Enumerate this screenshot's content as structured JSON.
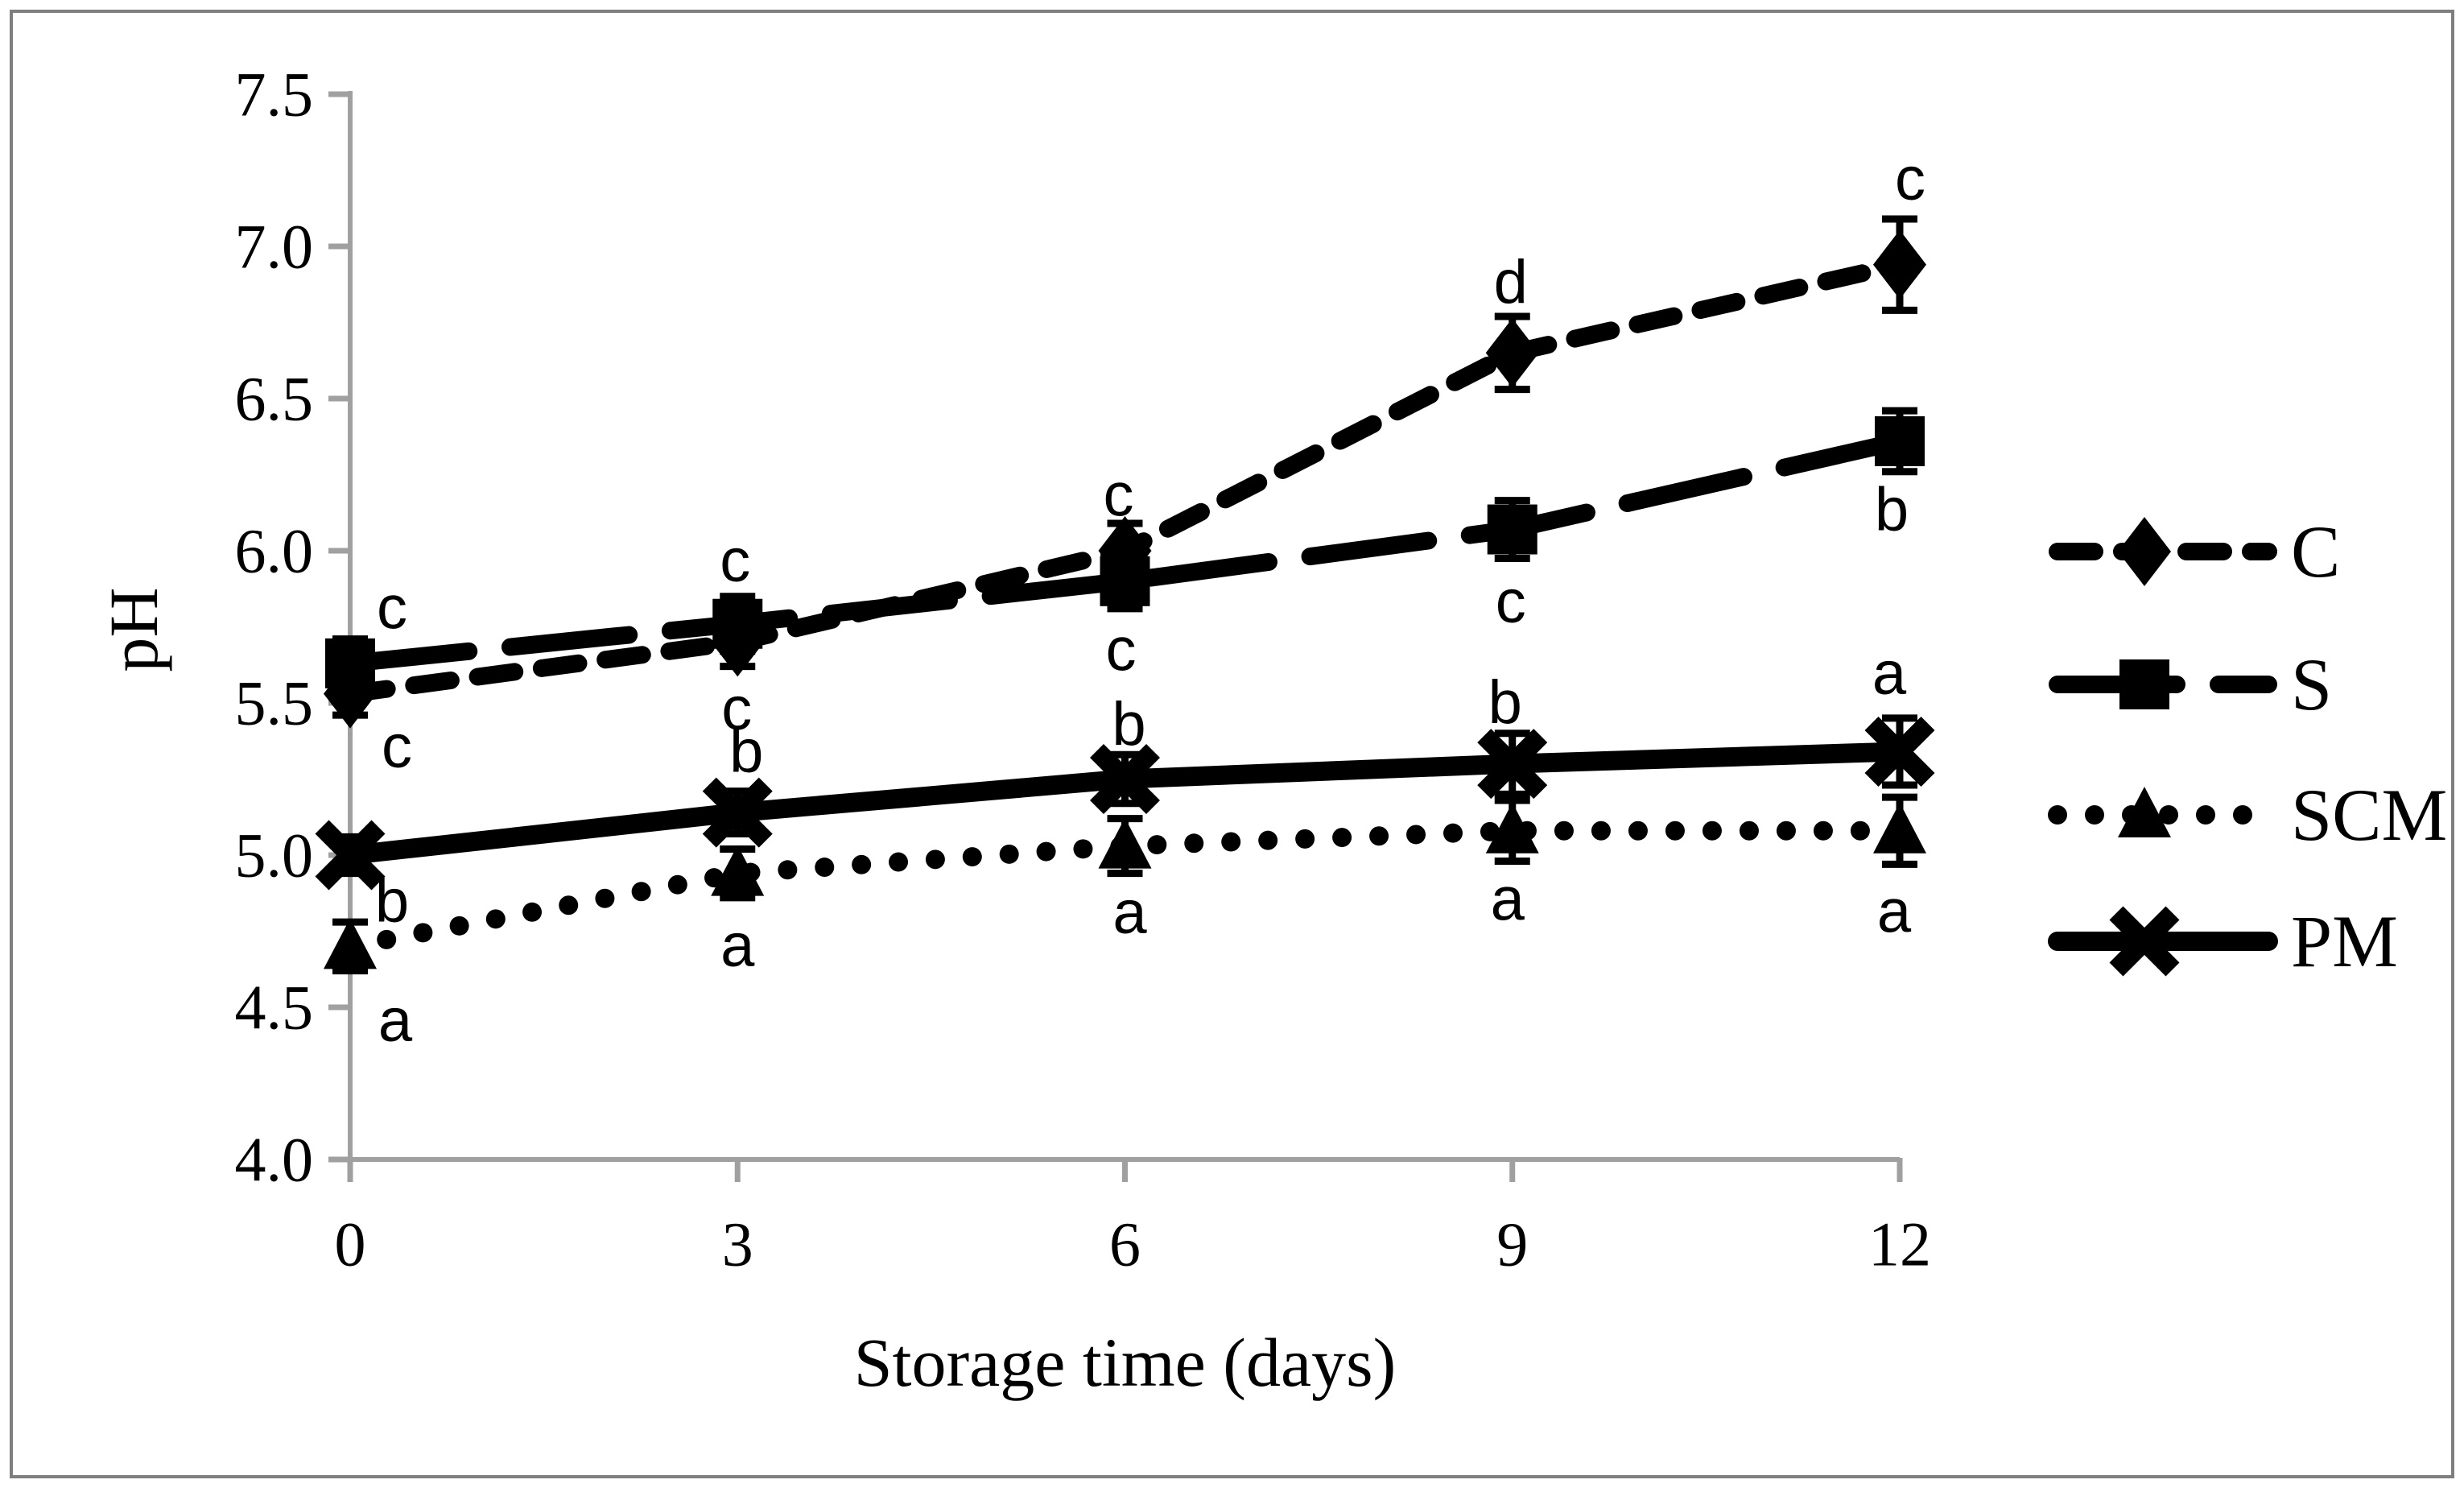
{
  "figure": {
    "background": "#ffffff",
    "border_color": "#7f7f7f",
    "axis_color": "#a0a0a0",
    "ink_color": "#000000"
  },
  "chart_data": {
    "type": "line",
    "title": "",
    "xlabel": "Storage time (days)",
    "ylabel": "pH",
    "x": [
      0,
      3,
      6,
      9,
      12
    ],
    "x_tick_labels": [
      "0",
      "3",
      "6",
      "9",
      "12"
    ],
    "y_tick_labels": [
      "4.0",
      "4.5",
      "5.0",
      "5.5",
      "6.0",
      "6.5",
      "7.0",
      "7.5"
    ],
    "ylim": [
      4.0,
      7.5
    ],
    "y_tick_step": 0.5,
    "grid": false,
    "legend_position": "right-middle",
    "legend_entries": [
      "C",
      "S",
      "SCM",
      "PM"
    ],
    "series": [
      {
        "name": "C",
        "marker": "diamond",
        "line_style": "dash",
        "values": [
          5.53,
          5.7,
          6.0,
          6.65,
          6.94
        ],
        "errors": [
          0.07,
          0.08,
          0.09,
          0.12,
          0.15
        ],
        "point_labels": [
          "c",
          "c",
          "c",
          "d",
          "c"
        ],
        "label_offsets": [
          [
            58,
            66
          ],
          [
            -1,
            83
          ],
          [
            -8,
            -69
          ],
          [
            -2,
            -88
          ],
          [
            13,
            -106
          ]
        ]
      },
      {
        "name": "S",
        "marker": "square",
        "line_style": "long-dash",
        "values": [
          5.63,
          5.76,
          5.9,
          6.07,
          6.36
        ],
        "errors": [
          0.08,
          0.09,
          0.09,
          0.095,
          0.1
        ],
        "point_labels": [
          "c",
          "c",
          "c",
          "c",
          "b"
        ],
        "label_offsets": [
          [
            52,
            -69
          ],
          [
            -3,
            -78
          ],
          [
            -5,
            85
          ],
          [
            -2,
            90
          ],
          [
            -10,
            85
          ]
        ]
      },
      {
        "name": "SCM",
        "marker": "triangle",
        "line_style": "dotted",
        "values": [
          4.7,
          4.94,
          5.03,
          5.08,
          5.08
        ],
        "errors": [
          0.08,
          0.08,
          0.09,
          0.1,
          0.11
        ],
        "point_labels": [
          "a",
          "a",
          "a",
          "a",
          "a"
        ],
        "label_offsets": [
          [
            56,
            92
          ],
          [
            0,
            90
          ],
          [
            6,
            83
          ],
          [
            -6,
            85
          ],
          [
            -7,
            100
          ]
        ]
      },
      {
        "name": "PM",
        "marker": "x",
        "line_style": "solid",
        "values": [
          5.0,
          5.14,
          5.25,
          5.3,
          5.34
        ],
        "errors": [
          0.06,
          0.07,
          0.08,
          0.1,
          0.11
        ],
        "point_labels": [
          "b",
          "b",
          "b",
          "b",
          "a"
        ],
        "label_offsets": [
          [
            52,
            57
          ],
          [
            11,
            -76
          ],
          [
            5,
            -68
          ],
          [
            -9,
            -76
          ],
          [
            -13,
            -97
          ]
        ]
      }
    ]
  }
}
